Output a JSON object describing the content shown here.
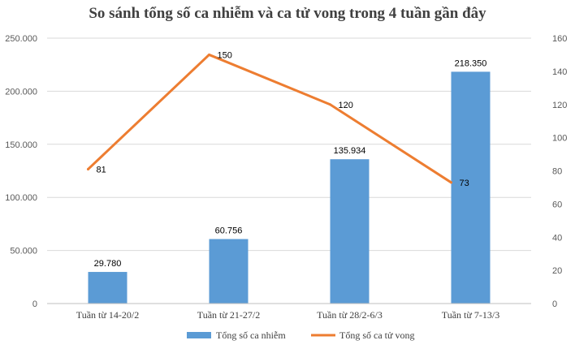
{
  "chart_data": {
    "type": "bar",
    "title": "So sánh tổng số ca nhiễm và ca tử vong trong 4 tuần gần đây",
    "categories": [
      "Tuần từ 14-20/2",
      "Tuần từ 21-27/2",
      "Tuần từ 28/2-6/3",
      "Tuần từ 7-13/3"
    ],
    "series": [
      {
        "name": "Tổng số ca nhiễm",
        "type": "bar",
        "axis": "left",
        "color": "#5B9BD5",
        "values": [
          29780,
          60756,
          135934,
          218350
        ],
        "labels": [
          "29.780",
          "60.756",
          "135.934",
          "218.350"
        ]
      },
      {
        "name": "Tổng số ca tử vong",
        "type": "line",
        "axis": "right",
        "color": "#ED7D31",
        "values": [
          81,
          150,
          120,
          73
        ],
        "labels": [
          "81",
          "150",
          "120",
          "73"
        ]
      }
    ],
    "y_left": {
      "ylim": [
        0,
        250000
      ],
      "ticks": [
        0,
        50000,
        100000,
        150000,
        200000,
        250000
      ],
      "tick_labels": [
        "0",
        "50.000",
        "100.000",
        "150.000",
        "200.000",
        "250.000"
      ]
    },
    "y_right": {
      "ylim": [
        0,
        160
      ],
      "ticks": [
        0,
        20,
        40,
        60,
        80,
        100,
        120,
        140,
        160
      ],
      "tick_labels": [
        "0",
        "20",
        "40",
        "60",
        "80",
        "100",
        "120",
        "140",
        "160"
      ]
    },
    "grid": true,
    "legend_position": "bottom"
  }
}
